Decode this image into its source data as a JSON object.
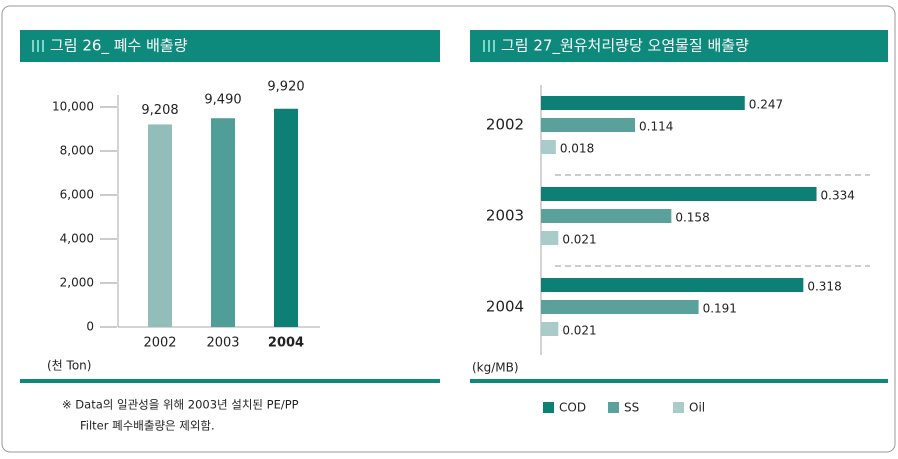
{
  "chart_data": [
    {
      "type": "bar",
      "title": "그림 26_ 폐수 배출량",
      "unit_label": "(천 Ton)",
      "categories": [
        "2002",
        "2003",
        "2004"
      ],
      "highlight_index": 2,
      "values": [
        9208,
        9490,
        9920
      ],
      "value_labels": [
        "9,208",
        "9,490",
        "9,920"
      ],
      "colors": [
        "#93bdbb",
        "#4f9e98",
        "#0e7f74"
      ],
      "ylim": [
        0,
        10000
      ],
      "yticks": [
        0,
        {
          "value": 2000,
          "label": "2,000"
        },
        {
          "value": 4000,
          "label": "4,000"
        },
        {
          "value": 6000,
          "label": "6,000"
        },
        {
          "value": 8000,
          "label": "8,000"
        },
        {
          "value": 10000,
          "label": "10,000"
        }
      ],
      "note": [
        "※ Data의 일관성을 위해  2003년 설치된 PE/PP",
        "Filter 폐수배출량은 제외함."
      ]
    },
    {
      "type": "hbar",
      "title": "그림 27_원유처리량당 오염물질 배출량",
      "unit_label": "(kg/MB)",
      "categories": [
        "2002",
        "2003",
        "2004"
      ],
      "xlim": [
        0,
        0.4
      ],
      "series": [
        {
          "name": "COD",
          "color": "#0e7f74",
          "values": [
            0.247,
            0.334,
            0.318
          ]
        },
        {
          "name": "SS",
          "color": "#5aa19c",
          "values": [
            0.114,
            0.158,
            0.191
          ]
        },
        {
          "name": "Oil",
          "color": "#a9cbc9",
          "values": [
            0.018,
            0.021,
            0.021
          ]
        }
      ]
    }
  ]
}
